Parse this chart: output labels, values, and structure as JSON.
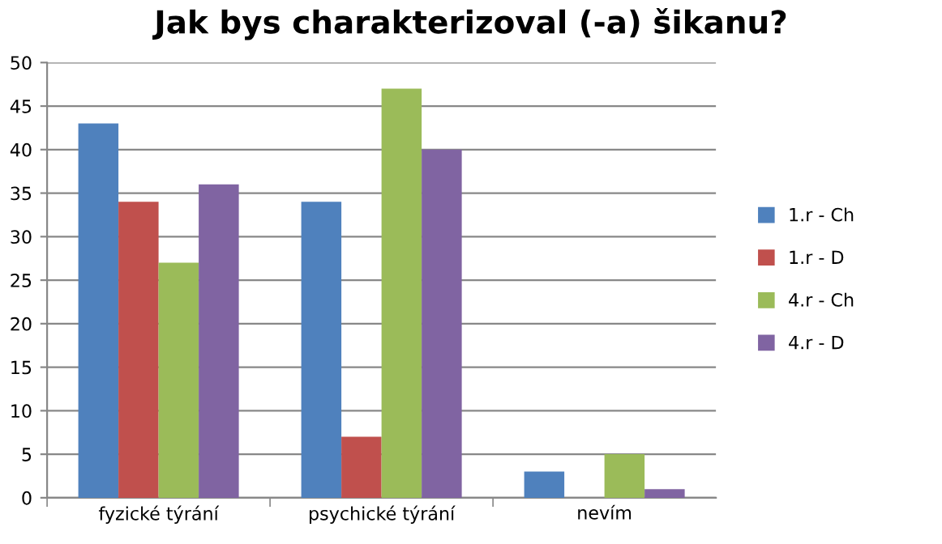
{
  "chart_data": {
    "type": "bar",
    "title": "Jak bys charakterizoval (-a) šikanu?",
    "categories": [
      "fyzické týrání",
      "psychické týrání",
      "nevím"
    ],
    "series": [
      {
        "name": "1.r - Ch",
        "color": "#4f81bd",
        "values": [
          43,
          34,
          3
        ]
      },
      {
        "name": "1.r - D",
        "color": "#c0504d",
        "values": [
          34,
          7,
          0
        ]
      },
      {
        "name": "4.r - Ch",
        "color": "#9bbb59",
        "values": [
          27,
          47,
          5
        ]
      },
      {
        "name": "4.r - D",
        "color": "#8064a2",
        "values": [
          36,
          40,
          1
        ]
      }
    ],
    "ylim": [
      0,
      50
    ],
    "yticks": [
      0,
      5,
      10,
      15,
      20,
      25,
      30,
      35,
      40,
      45,
      50
    ],
    "grid": "y",
    "legend": "right"
  }
}
